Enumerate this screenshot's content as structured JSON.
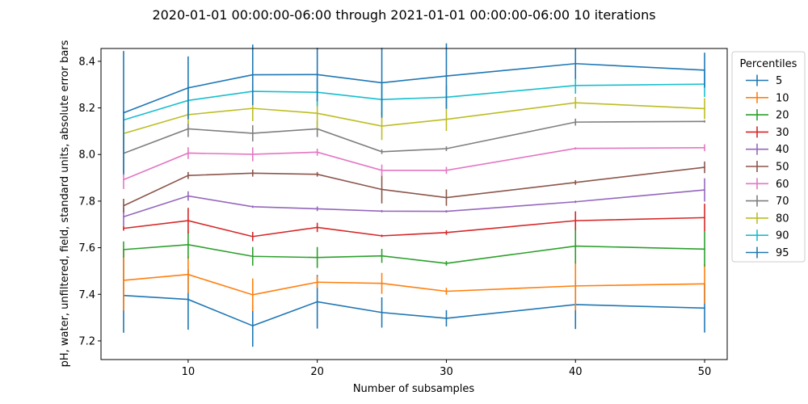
{
  "chart_data": {
    "type": "line",
    "title": "2020-01-01 00:00:00-06:00 through 2021-01-01 00:00:00-06:00 10 iterations",
    "xlabel": "Number of subsamples",
    "ylabel": "pH, water, unfiltered, field, standard units, absolute error bars",
    "xlim": [
      3.25,
      51.75
    ],
    "ylim": [
      7.12,
      8.455
    ],
    "xticks": [
      10,
      20,
      30,
      40,
      50
    ],
    "yticks": [
      7.2,
      7.4,
      7.6,
      7.8,
      8.0,
      8.2,
      8.4
    ],
    "x": [
      5,
      10,
      15,
      20,
      25,
      30,
      40,
      50
    ],
    "legend": {
      "title": "Percentiles",
      "placement": "outside-right"
    },
    "grid": false,
    "series": [
      {
        "name": "5",
        "color": "#1f77b4",
        "values": [
          7.395,
          7.378,
          7.265,
          7.368,
          7.322,
          7.297,
          7.356,
          7.341
        ],
        "err": [
          0.16,
          0.13,
          0.09,
          0.115,
          0.065,
          0.035,
          0.105,
          0.105
        ]
      },
      {
        "name": "10",
        "color": "#ff7f0e",
        "values": [
          7.46,
          7.485,
          7.398,
          7.452,
          7.447,
          7.413,
          7.436,
          7.445
        ],
        "err": [
          0.13,
          0.08,
          0.07,
          0.025,
          0.045,
          0.015,
          0.105,
          0.085
        ]
      },
      {
        "name": "20",
        "color": "#2ca02c",
        "values": [
          7.592,
          7.613,
          7.563,
          7.558,
          7.565,
          7.533,
          7.607,
          7.594
        ],
        "err": [
          0.035,
          0.06,
          0.04,
          0.045,
          0.03,
          0.01,
          0.075,
          0.075
        ]
      },
      {
        "name": "30",
        "color": "#d62728",
        "values": [
          7.683,
          7.716,
          7.648,
          7.687,
          7.651,
          7.665,
          7.716,
          7.729
        ],
        "err": [
          0.01,
          0.055,
          0.02,
          0.02,
          0.005,
          0.01,
          0.04,
          0.06
        ]
      },
      {
        "name": "40",
        "color": "#9467bd",
        "values": [
          7.733,
          7.822,
          7.776,
          7.767,
          7.757,
          7.756,
          7.797,
          7.848
        ],
        "err": [
          0.04,
          0.02,
          0.005,
          0.01,
          0.005,
          0.005,
          0.005,
          0.05
        ]
      },
      {
        "name": "50",
        "color": "#8c564b",
        "values": [
          7.78,
          7.91,
          7.92,
          7.915,
          7.85,
          7.815,
          7.88,
          7.945
        ],
        "err": [
          0.03,
          0.015,
          0.015,
          0.01,
          0.06,
          0.035,
          0.01,
          0.025
        ]
      },
      {
        "name": "60",
        "color": "#e377c2",
        "values": [
          7.892,
          8.006,
          8.001,
          8.01,
          7.932,
          7.932,
          8.026,
          8.029
        ],
        "err": [
          0.04,
          0.025,
          0.03,
          0.015,
          0.025,
          0.015,
          0.005,
          0.015
        ]
      },
      {
        "name": "70",
        "color": "#7f7f7f",
        "values": [
          8.005,
          8.11,
          8.091,
          8.11,
          8.012,
          8.025,
          8.139,
          8.142
        ],
        "err": [
          0.08,
          0.035,
          0.035,
          0.035,
          0.01,
          0.01,
          0.015,
          0.005
        ]
      },
      {
        "name": "80",
        "color": "#bcbd22",
        "values": [
          8.09,
          8.171,
          8.198,
          8.177,
          8.122,
          8.151,
          8.222,
          8.197
        ],
        "err": [
          0.04,
          0.04,
          0.055,
          0.065,
          0.06,
          0.05,
          0.025,
          0.045
        ]
      },
      {
        "name": "90",
        "color": "#17becf",
        "values": [
          8.148,
          8.232,
          8.271,
          8.267,
          8.236,
          8.246,
          8.296,
          8.302
        ],
        "err": [
          0.04,
          0.06,
          0.035,
          0.06,
          0.065,
          0.05,
          0.035,
          0.055
        ]
      },
      {
        "name": "95",
        "color": "#1f77b4",
        "values": [
          8.179,
          8.286,
          8.342,
          8.343,
          8.308,
          8.337,
          8.39,
          8.362
        ],
        "err": [
          0.265,
          0.135,
          0.13,
          0.115,
          0.15,
          0.14,
          0.065,
          0.075
        ]
      }
    ]
  }
}
